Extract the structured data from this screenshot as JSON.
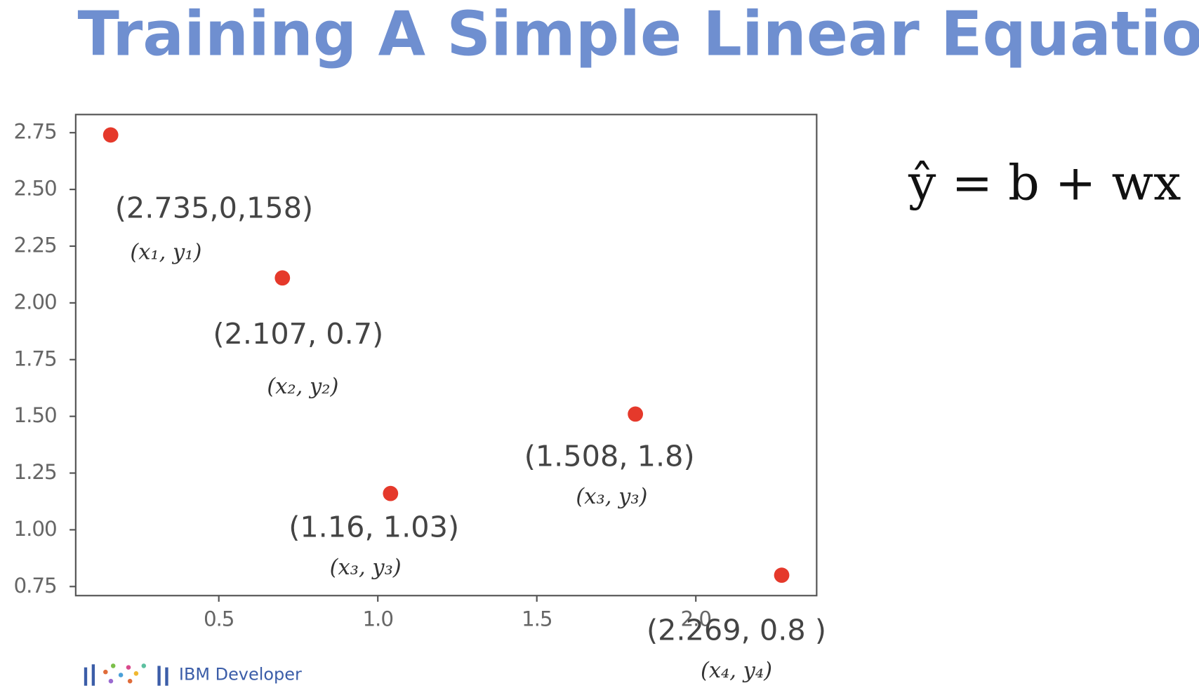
{
  "chart_data": {
    "type": "scatter",
    "title": "Training A Simple Linear Equation",
    "equation": "ŷ = b + wx",
    "footer": "IBM Developer",
    "x": [
      0.16,
      0.7,
      1.04,
      1.81,
      2.27
    ],
    "values": [
      2.74,
      2.11,
      1.16,
      1.51,
      0.8
    ],
    "color": "#e5392b",
    "xlim": [
      0.05,
      2.38
    ],
    "ylim": [
      0.71,
      2.83
    ],
    "xticks": [
      0.5,
      {
        "value": 1,
        "label": "1.0"
      },
      1.5,
      {
        "value": 2,
        "label": "2.0"
      }
    ],
    "yticks": [
      0.75,
      {
        "value": 1,
        "label": "1.00"
      },
      1.25,
      {
        "value": 1.5,
        "label": "1.50"
      },
      1.75,
      {
        "value": 2,
        "label": "2.00"
      },
      2.25,
      {
        "value": 2.5,
        "label": "2.50"
      },
      2.75
    ],
    "grid": false,
    "annotations": [
      {
        "text": "(2.735,0,158)",
        "label": "(x₁, y₁)"
      },
      {
        "text": "(2.107, 0.7)",
        "label": "(x₂, y₂)"
      },
      {
        "text": "(1.16, 1.03)",
        "label": "(x₃, y₃)"
      },
      {
        "text": "(1.508, 1.8)",
        "label": "(x₃, y₃)"
      },
      {
        "text": "(2.269, 0.8 )",
        "label": "(x₄, y₄)"
      }
    ]
  }
}
